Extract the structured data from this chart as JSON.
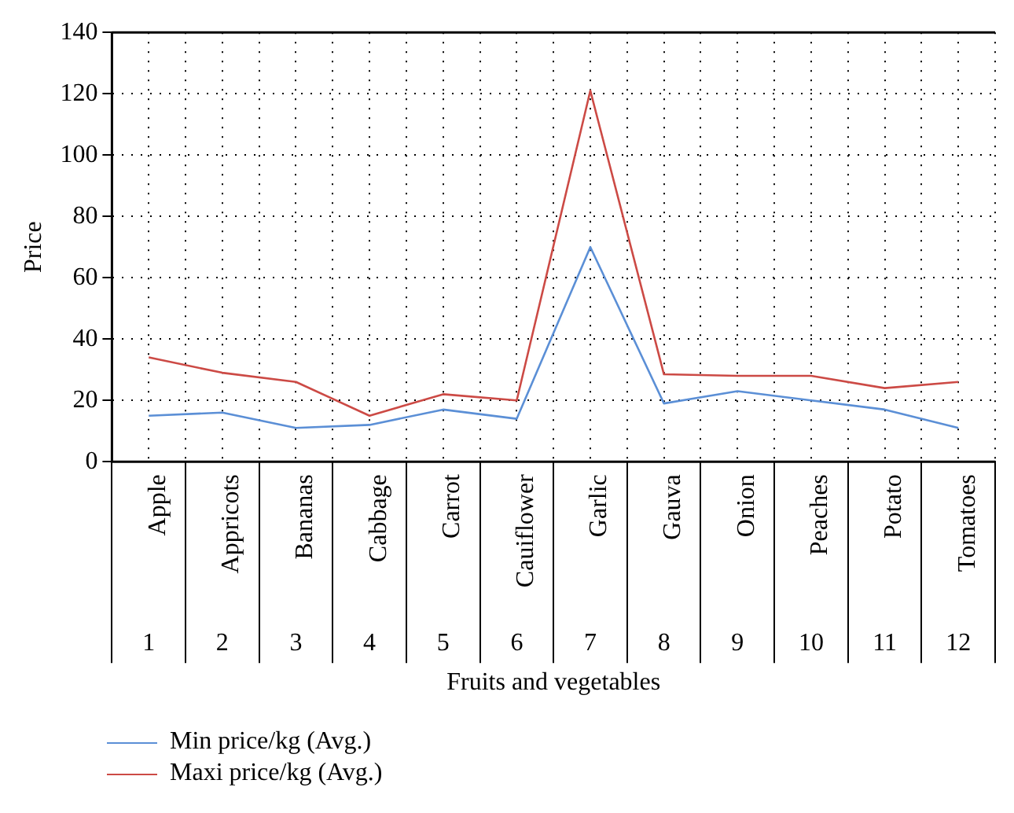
{
  "chart_data": {
    "type": "line",
    "xlabel": "Fruits and vegetables",
    "ylabel": "Price",
    "x": [
      1,
      2,
      3,
      4,
      5,
      6,
      7,
      8,
      9,
      10,
      11,
      12
    ],
    "xlim": [
      0.5,
      12.5
    ],
    "xticks": [
      {
        "value": 0.5,
        "label": null
      },
      1,
      {
        "value": 1.5,
        "label": null
      },
      2,
      {
        "value": 2.5,
        "label": null
      },
      3,
      {
        "value": 3.5,
        "label": null
      },
      4,
      {
        "value": 4.5,
        "label": null
      },
      5,
      {
        "value": 5.5,
        "label": null
      },
      6,
      {
        "value": 6.5,
        "label": null
      },
      7,
      {
        "value": 7.5,
        "label": null
      },
      8,
      {
        "value": 8.5,
        "label": null
      },
      9,
      {
        "value": 9.5,
        "label": null
      },
      10,
      {
        "value": 10.5,
        "label": null
      },
      11,
      {
        "value": 11.5,
        "label": null
      },
      12,
      {
        "value": 12.5,
        "label": null
      }
    ],
    "ylim": [
      0,
      140
    ],
    "yticks": [
      0,
      20,
      40,
      60,
      80,
      100,
      120,
      140
    ],
    "series": [
      {
        "name": "Min price/kg (Avg.)",
        "color": "#5b8fd6",
        "values": [
          15,
          16,
          11,
          12,
          17,
          14,
          70,
          19,
          23,
          20,
          17,
          11
        ]
      },
      {
        "name": "Maxi price/kg (Avg.)",
        "color": "#cc4a45",
        "values": [
          34,
          29,
          26,
          15,
          22,
          20,
          121,
          28.5,
          28,
          28,
          24,
          26
        ]
      }
    ],
    "annotations": [
      "Apple",
      "Appricots",
      "Bananas",
      "Cabbage",
      "Carrot",
      "Cauiflower",
      "Garlic",
      "Gauva",
      "Onion",
      "Peaches",
      "Potato",
      "Tomatoes"
    ],
    "grid": true,
    "legend": "bottom left",
    "marker": "none",
    "line_style": "solid"
  }
}
